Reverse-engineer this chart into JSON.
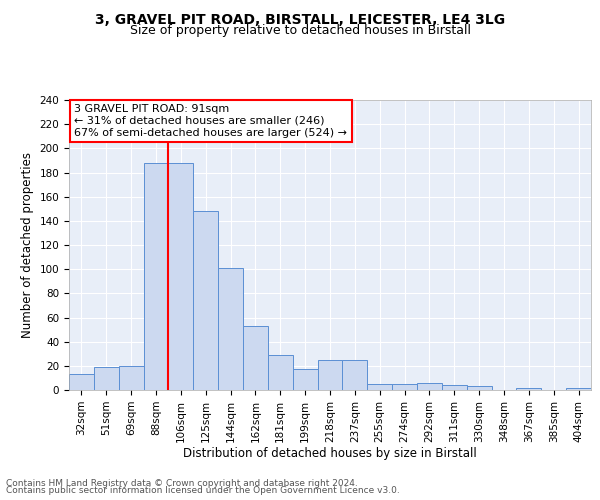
{
  "title1": "3, GRAVEL PIT ROAD, BIRSTALL, LEICESTER, LE4 3LG",
  "title2": "Size of property relative to detached houses in Birstall",
  "xlabel": "Distribution of detached houses by size in Birstall",
  "ylabel": "Number of detached properties",
  "bar_labels": [
    "32sqm",
    "51sqm",
    "69sqm",
    "88sqm",
    "106sqm",
    "125sqm",
    "144sqm",
    "162sqm",
    "181sqm",
    "199sqm",
    "218sqm",
    "237sqm",
    "255sqm",
    "274sqm",
    "292sqm",
    "311sqm",
    "330sqm",
    "348sqm",
    "367sqm",
    "385sqm",
    "404sqm"
  ],
  "bar_values": [
    13,
    19,
    20,
    188,
    188,
    148,
    101,
    53,
    29,
    17,
    25,
    25,
    5,
    5,
    6,
    4,
    3,
    0,
    2,
    0,
    2
  ],
  "bar_color": "#ccd9f0",
  "bar_edge_color": "#5b8fd4",
  "red_line_x": 3.5,
  "annotation_line1": "3 GRAVEL PIT ROAD: 91sqm",
  "annotation_line2": "← 31% of detached houses are smaller (246)",
  "annotation_line3": "67% of semi-detached houses are larger (524) →",
  "annotation_box_color": "white",
  "annotation_box_edge_color": "red",
  "red_line_color": "red",
  "ylim": [
    0,
    240
  ],
  "yticks": [
    0,
    20,
    40,
    60,
    80,
    100,
    120,
    140,
    160,
    180,
    200,
    220,
    240
  ],
  "background_color": "#e8eef8",
  "grid_color": "white",
  "footer_line1": "Contains HM Land Registry data © Crown copyright and database right 2024.",
  "footer_line2": "Contains public sector information licensed under the Open Government Licence v3.0.",
  "title1_fontsize": 10,
  "title2_fontsize": 9,
  "xlabel_fontsize": 8.5,
  "ylabel_fontsize": 8.5,
  "tick_fontsize": 7.5,
  "annotation_fontsize": 8,
  "footer_fontsize": 6.5
}
